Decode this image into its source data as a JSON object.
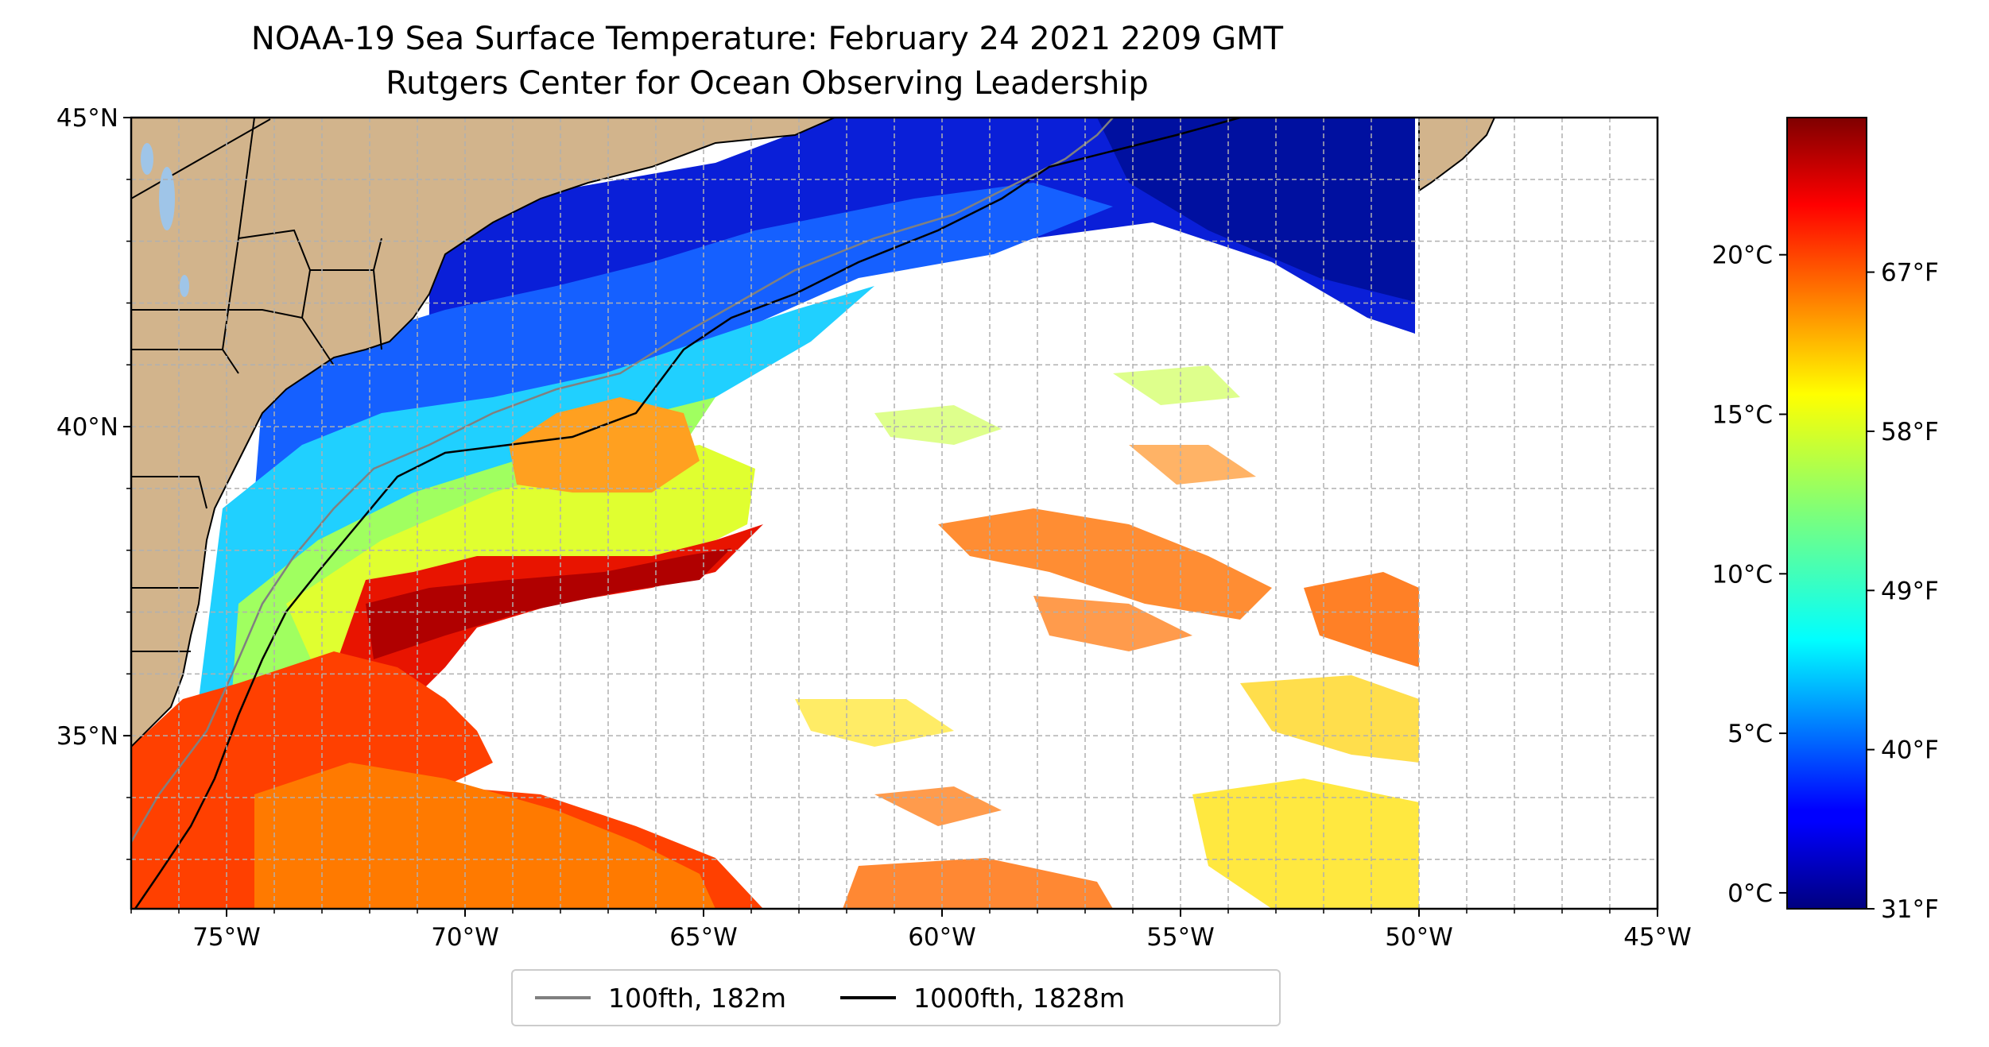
{
  "title": "NOAA-19 Sea Surface Temperature: February 24 2021 2209 GMT",
  "subtitle": "Rutgers Center for Ocean Observing Leadership",
  "map": {
    "lon_range": [
      -77,
      -45
    ],
    "lat_range": [
      32.2,
      45
    ],
    "lon_ticks": [
      {
        "lon": -75,
        "label": "75°W"
      },
      {
        "lon": -70,
        "label": "70°W"
      },
      {
        "lon": -65,
        "label": "65°W"
      },
      {
        "lon": -60,
        "label": "60°W"
      },
      {
        "lon": -55,
        "label": "55°W"
      },
      {
        "lon": -50,
        "label": "50°W"
      },
      {
        "lon": -45,
        "label": "45°W"
      }
    ],
    "lat_ticks": [
      {
        "lat": 45,
        "label": "45°N"
      },
      {
        "lat": 40,
        "label": "40°N"
      },
      {
        "lat": 35,
        "label": "35°N"
      }
    ],
    "colors": {
      "land": "#d2b48c",
      "lakes": "#9fc5e8",
      "grid": "#b0b0b0"
    }
  },
  "colorbar": {
    "colormap": "jet",
    "celsius_ticks": [
      {
        "value": 0,
        "label": "0°C"
      },
      {
        "value": 5,
        "label": "5°C"
      },
      {
        "value": 10,
        "label": "10°C"
      },
      {
        "value": 15,
        "label": "15°C"
      },
      {
        "value": 20,
        "label": "20°C"
      }
    ],
    "fahrenheit_ticks": [
      {
        "value": 31,
        "label": "31°F"
      },
      {
        "value": 40,
        "label": "40°F"
      },
      {
        "value": 49,
        "label": "49°F"
      },
      {
        "value": 58,
        "label": "58°F"
      },
      {
        "value": 67,
        "label": "67°F"
      }
    ]
  },
  "legend": {
    "items": [
      {
        "label": "100fth, 182m",
        "color": "#808080"
      },
      {
        "label": "1000fth, 1828m",
        "color": "#000000"
      }
    ]
  }
}
